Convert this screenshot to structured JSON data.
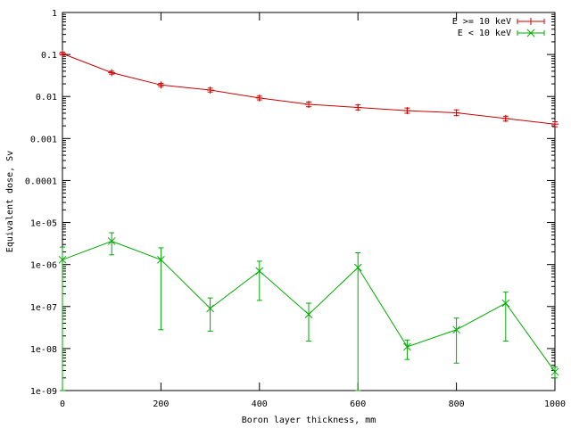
{
  "chart_data": {
    "type": "line",
    "xlabel": "Boron layer thickness, mm",
    "ylabel": "Equivalent dose, Sv",
    "xlim": [
      0,
      1000
    ],
    "ylim": [
      1e-09,
      1
    ],
    "yscale": "log",
    "grid": false,
    "legend_position": "top-right",
    "x_ticks": [
      0,
      200,
      400,
      600,
      800,
      1000
    ],
    "x_tick_labels": [
      "0",
      "200",
      "400",
      "600",
      "800",
      "1000"
    ],
    "y_ticks": [
      1,
      0.1,
      0.01,
      0.001,
      0.0001,
      1e-05,
      1e-06,
      1e-07,
      1e-08,
      1e-09
    ],
    "y_tick_labels": [
      "1",
      "0.1",
      "0.01",
      "0.001",
      "0.0001",
      "1e-05",
      "1e-06",
      "1e-07",
      "1e-08",
      "1e-09"
    ],
    "x": [
      0,
      100,
      200,
      300,
      400,
      500,
      600,
      700,
      800,
      900,
      1000
    ],
    "series": [
      {
        "name": "E >= 10 keV",
        "color": "#cc0000",
        "marker": "plus",
        "values": [
          0.105,
          0.037,
          0.0188,
          0.0142,
          0.0092,
          0.0065,
          0.0055,
          0.0046,
          0.0041,
          0.003,
          0.0022
        ],
        "err_low": [
          0.097,
          0.034,
          0.0172,
          0.0128,
          0.0083,
          0.0057,
          0.0048,
          0.004,
          0.0035,
          0.0026,
          0.0019
        ],
        "err_high": [
          0.114,
          0.04,
          0.0205,
          0.0158,
          0.0102,
          0.0074,
          0.0063,
          0.0053,
          0.0048,
          0.0034,
          0.0025
        ]
      },
      {
        "name": "E < 10 keV",
        "color": "#00aa00",
        "marker": "x",
        "values": [
          1.3e-06,
          3.6e-06,
          1.3e-06,
          9e-08,
          7e-07,
          6.5e-08,
          8.5e-07,
          1.1e-08,
          2.8e-08,
          1.2e-07,
          2.8e-09
        ],
        "err_low": [
          1e-09,
          1.7e-06,
          2.8e-08,
          2.6e-08,
          1.4e-07,
          1.5e-08,
          1e-09,
          5.5e-09,
          4.5e-09,
          1.5e-08,
          2e-09
        ],
        "err_high": [
          2.6e-06,
          5.7e-06,
          2.5e-06,
          1.6e-07,
          1.2e-06,
          1.2e-07,
          1.9e-06,
          1.6e-08,
          5.3e-08,
          2.2e-07,
          3.6e-09
        ]
      }
    ]
  }
}
